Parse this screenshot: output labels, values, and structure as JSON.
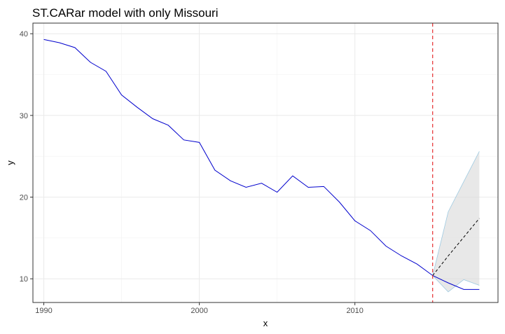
{
  "chart_data": {
    "type": "line",
    "title": "ST.CARar model with only Missouri",
    "xlabel": "x",
    "ylabel": "y",
    "xlim": [
      1989.3,
      2019.2
    ],
    "ylim": [
      7.1,
      41.3
    ],
    "x_ticks": [
      1990,
      2000,
      2010
    ],
    "y_ticks": [
      10,
      20,
      30,
      40
    ],
    "grid": true,
    "vline": {
      "x": 2015,
      "color": "#e41a1c",
      "style": "dashed"
    },
    "series": [
      {
        "style": "solid",
        "color": "#0000cd",
        "points": [
          [
            1990,
            39.3
          ],
          [
            1991,
            38.9
          ],
          [
            1992,
            38.3
          ],
          [
            1993,
            36.5
          ],
          [
            1994,
            35.4
          ],
          [
            1995,
            32.5
          ],
          [
            1996,
            31.0
          ],
          [
            1997,
            29.6
          ],
          [
            1998,
            28.8
          ],
          [
            1999,
            27.0
          ],
          [
            2000,
            26.7
          ],
          [
            2001,
            23.3
          ],
          [
            2002,
            22.0
          ],
          [
            2003,
            21.2
          ],
          [
            2004,
            21.7
          ],
          [
            2005,
            20.6
          ],
          [
            2006,
            22.6
          ],
          [
            2007,
            21.2
          ],
          [
            2008,
            21.3
          ],
          [
            2009,
            19.4
          ],
          [
            2010,
            17.1
          ],
          [
            2011,
            15.9
          ],
          [
            2012,
            14.0
          ],
          [
            2013,
            12.8
          ],
          [
            2014,
            11.8
          ],
          [
            2015,
            10.4
          ],
          [
            2016,
            9.5
          ],
          [
            2017,
            8.7
          ],
          [
            2018,
            8.7
          ]
        ]
      },
      {
        "style": "dashed",
        "color": "#000000",
        "points": [
          [
            2015,
            10.4
          ],
          [
            2016,
            12.8
          ],
          [
            2017,
            15.1
          ],
          [
            2018,
            17.4
          ]
        ]
      }
    ],
    "band": {
      "fill": "#d9d9d9",
      "edge": "#9ecae1",
      "x": [
        2015,
        2016,
        2017,
        2018
      ],
      "upper": [
        10.4,
        18.2,
        21.9,
        25.6
      ],
      "lower": [
        10.4,
        8.4,
        9.9,
        9.2
      ]
    }
  }
}
